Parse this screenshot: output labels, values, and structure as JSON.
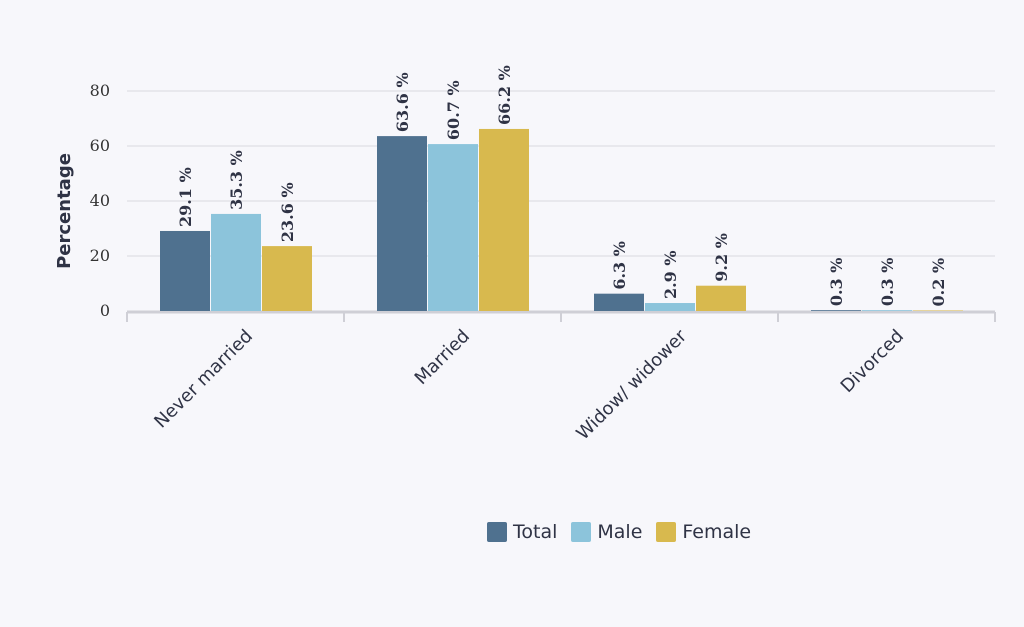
{
  "chart_data": {
    "type": "bar",
    "ylabel": "Percentage",
    "xlabel": "",
    "ylim": [
      0,
      80
    ],
    "yticks": [
      0,
      20,
      40,
      60,
      80
    ],
    "categories": [
      "Never married",
      "Married",
      "Widow/ widower",
      "Divorced"
    ],
    "series": [
      {
        "name": "Total",
        "color": "#4f718f",
        "values": [
          29.1,
          63.6,
          6.3,
          0.3
        ]
      },
      {
        "name": "Male",
        "color": "#8cc4db",
        "values": [
          35.3,
          60.7,
          2.9,
          0.3
        ]
      },
      {
        "name": "Female",
        "color": "#d8b94e",
        "values": [
          23.6,
          66.2,
          9.2,
          0.2
        ]
      }
    ],
    "value_label_suffix": " %",
    "grid": true,
    "legend_position": "bottom"
  }
}
